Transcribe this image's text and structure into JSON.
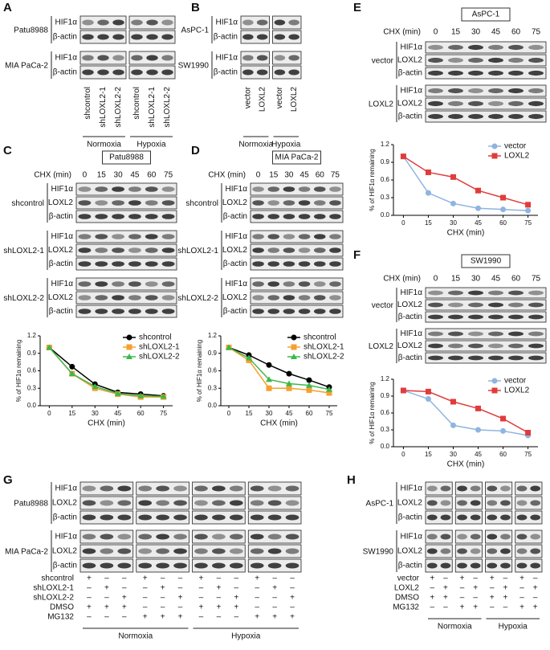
{
  "panels": [
    {
      "label": "A",
      "groups": [
        {
          "name": "Patu8988",
          "rows": [
            "HIF1α",
            "β-actin"
          ]
        },
        {
          "name": "MIA PaCa-2",
          "rows": [
            "HIF1α",
            "β-actin"
          ]
        }
      ],
      "lanes": [
        "shcontrol",
        "shLOXL2-1",
        "shLOXL2-2",
        "shcontrol",
        "shLOXL2-1",
        "shLOXL2-2"
      ],
      "conditions": [
        "Normoxia",
        "Hypoxia"
      ]
    },
    {
      "label": "B",
      "groups": [
        {
          "name": "AsPC-1",
          "rows": [
            "HIF1α",
            "β-actin"
          ]
        },
        {
          "name": "SW1990",
          "rows": [
            "HIF1α",
            "β-actin"
          ]
        }
      ],
      "lanes": [
        "vector",
        "LOXL2",
        "vector",
        "LOXL2"
      ],
      "conditions": [
        "Normoxia",
        "Hypoxia"
      ]
    },
    {
      "label": "C",
      "title": "Patu8988",
      "time_label": "CHX (min)",
      "times": [
        0,
        15,
        30,
        45,
        60,
        75
      ],
      "groups": [
        {
          "name": "shcontrol",
          "rows": [
            "HIF1α",
            "LOXL2",
            "β-actin"
          ]
        },
        {
          "name": "shLOXL2-1",
          "rows": [
            "HIF1α",
            "LOXL2",
            "β-actin"
          ]
        },
        {
          "name": "shLOXL2-2",
          "rows": [
            "HIF1α",
            "LOXL2",
            "β-actin"
          ]
        }
      ]
    },
    {
      "label": "D",
      "title": "MIA PaCa-2",
      "time_label": "CHX (min)",
      "times": [
        0,
        15,
        30,
        45,
        60,
        75
      ],
      "groups": [
        {
          "name": "shcontrol",
          "rows": [
            "HIF1α",
            "LOXL2",
            "β-actin"
          ]
        },
        {
          "name": "shLOXL2-1",
          "rows": [
            "HIF1α",
            "LOXL2",
            "β-actin"
          ]
        },
        {
          "name": "shLOXL2-2",
          "rows": [
            "HIF1α",
            "LOXL2",
            "β-actin"
          ]
        }
      ]
    },
    {
      "label": "E",
      "title": "AsPC-1",
      "time_label": "CHX (min)",
      "times": [
        0,
        15,
        30,
        45,
        60,
        75
      ],
      "groups": [
        {
          "name": "vector",
          "rows": [
            "HIF1α",
            "LOXL2",
            "β-actin"
          ]
        },
        {
          "name": "LOXL2",
          "rows": [
            "HIF1α",
            "LOXL2",
            "β-actin"
          ]
        }
      ]
    },
    {
      "label": "F",
      "title": "SW1990",
      "time_label": "CHX (min)",
      "times": [
        0,
        15,
        30,
        45,
        60,
        75
      ],
      "groups": [
        {
          "name": "vector",
          "rows": [
            "HIF1α",
            "LOXL2",
            "β-actin"
          ]
        },
        {
          "name": "LOXL2",
          "rows": [
            "HIF1α",
            "LOXL2",
            "β-actin"
          ]
        }
      ]
    },
    {
      "label": "G",
      "groups": [
        {
          "name": "Patu8988",
          "rows": [
            "HIF1α",
            "LOXL2",
            "β-actin"
          ]
        },
        {
          "name": "MIA PaCa-2",
          "rows": [
            "HIF1α",
            "LOXL2",
            "β-actin"
          ]
        }
      ],
      "treatments": [
        {
          "name": "shcontrol",
          "signs": [
            "+",
            "–",
            "–",
            "+",
            "–",
            "–",
            "+",
            "–",
            "–",
            "+",
            "–",
            "–"
          ]
        },
        {
          "name": "shLOXL2-1",
          "signs": [
            "–",
            "+",
            "–",
            "–",
            "+",
            "–",
            "–",
            "+",
            "–",
            "–",
            "+",
            "–"
          ]
        },
        {
          "name": "shLOXL2-2",
          "signs": [
            "–",
            "–",
            "+",
            "–",
            "–",
            "+",
            "–",
            "–",
            "+",
            "–",
            "–",
            "+"
          ]
        },
        {
          "name": "DMSO",
          "signs": [
            "+",
            "+",
            "+",
            "–",
            "–",
            "–",
            "+",
            "+",
            "+",
            "–",
            "–",
            "–"
          ]
        },
        {
          "name": "MG132",
          "signs": [
            "–",
            "–",
            "–",
            "+",
            "+",
            "+",
            "–",
            "–",
            "–",
            "+",
            "+",
            "+"
          ]
        }
      ],
      "conditions": [
        "Normoxia",
        "Hypoxia"
      ]
    },
    {
      "label": "H",
      "groups": [
        {
          "name": "AsPC-1",
          "rows": [
            "HIF1α",
            "LOXL2",
            "β-actin"
          ]
        },
        {
          "name": "SW1990",
          "rows": [
            "HIF1α",
            "LOXL2",
            "β-actin"
          ]
        }
      ],
      "treatments": [
        {
          "name": "vector",
          "signs": [
            "+",
            "–",
            "+",
            "–",
            "+",
            "–",
            "+",
            "–"
          ]
        },
        {
          "name": "LOXL2",
          "signs": [
            "–",
            "+",
            "–",
            "+",
            "–",
            "+",
            "–",
            "+"
          ]
        },
        {
          "name": "DMSO",
          "signs": [
            "+",
            "+",
            "–",
            "–",
            "+",
            "+",
            "–",
            "–"
          ]
        },
        {
          "name": "MG132",
          "signs": [
            "–",
            "–",
            "+",
            "+",
            "–",
            "–",
            "+",
            "+"
          ]
        }
      ],
      "conditions": [
        "Normoxia",
        "Hypoxia"
      ]
    }
  ],
  "chart_data": [
    {
      "type": "line",
      "xlabel": "CHX (min)",
      "ylabel": "% of HIF1α remaining",
      "x": [
        0,
        15,
        30,
        45,
        60,
        75
      ],
      "xlim": [
        -6,
        81
      ],
      "xticks": [
        0,
        15,
        30,
        45,
        60,
        75
      ],
      "ylim": [
        0,
        1.2
      ],
      "yticks": [
        {
          "value": 0,
          "label": "0.0"
        },
        0.3,
        0.6,
        0.9,
        1.2
      ],
      "legend": "upper right",
      "series": [
        {
          "name": "shcontrol",
          "color": "#000000",
          "marker": "circle",
          "values": [
            1,
            0.67,
            0.37,
            0.23,
            0.2,
            0.17
          ]
        },
        {
          "name": "shLOXL2-1",
          "color": "#f5a030",
          "marker": "square",
          "values": [
            1,
            0.55,
            0.3,
            0.2,
            0.15,
            0.15
          ]
        },
        {
          "name": "shLOXL2-2",
          "color": "#3cb84a",
          "marker": "triangle",
          "values": [
            1,
            0.55,
            0.33,
            0.21,
            0.17,
            0.16
          ]
        }
      ]
    },
    {
      "type": "line",
      "xlabel": "CHX (min)",
      "ylabel": "% of HIF1α remaining",
      "x": [
        0,
        15,
        30,
        45,
        60,
        75
      ],
      "xlim": [
        -6,
        81
      ],
      "xticks": [
        0,
        15,
        30,
        45,
        60,
        75
      ],
      "ylim": [
        0,
        1.2
      ],
      "yticks": [
        {
          "value": 0,
          "label": "0.0"
        },
        0.3,
        0.6,
        0.9,
        1.2
      ],
      "legend": "upper right",
      "series": [
        {
          "name": "shcontrol",
          "color": "#000000",
          "marker": "circle",
          "values": [
            1,
            0.87,
            0.7,
            0.55,
            0.44,
            0.32
          ]
        },
        {
          "name": "shLOXL2-1",
          "color": "#f5a030",
          "marker": "square",
          "values": [
            1,
            0.78,
            0.3,
            0.3,
            0.27,
            0.22
          ]
        },
        {
          "name": "shLOXL2-2",
          "color": "#3cb84a",
          "marker": "triangle",
          "values": [
            1,
            0.82,
            0.45,
            0.38,
            0.35,
            0.28
          ]
        }
      ]
    },
    {
      "type": "line",
      "xlabel": "CHX (min)",
      "ylabel": "% of HIF1α remaining",
      "x": [
        0,
        15,
        30,
        45,
        60,
        75
      ],
      "xlim": [
        -6,
        81
      ],
      "xticks": [
        0,
        15,
        30,
        45,
        60,
        75
      ],
      "ylim": [
        0,
        1.2
      ],
      "yticks": [
        {
          "value": 0,
          "label": "0.0"
        },
        0.3,
        0.6,
        0.9,
        1.2
      ],
      "legend": "upper right",
      "series": [
        {
          "name": "vector",
          "color": "#8fb4e0",
          "marker": "circle",
          "values": [
            1,
            0.38,
            0.2,
            0.12,
            0.1,
            0.08
          ]
        },
        {
          "name": "LOXL2",
          "color": "#e03c3c",
          "marker": "square",
          "values": [
            1,
            0.73,
            0.65,
            0.42,
            0.3,
            0.18
          ]
        }
      ]
    },
    {
      "type": "line",
      "xlabel": "CHX (min)",
      "ylabel": "% of HIF1α remaining",
      "x": [
        0,
        15,
        30,
        45,
        60,
        75
      ],
      "xlim": [
        -6,
        81
      ],
      "xticks": [
        0,
        15,
        30,
        45,
        60,
        75
      ],
      "ylim": [
        0,
        1.2
      ],
      "yticks": [
        {
          "value": 0,
          "label": "0.0"
        },
        0.3,
        0.6,
        0.9,
        1.2
      ],
      "legend": "upper right",
      "series": [
        {
          "name": "vector",
          "color": "#8fb4e0",
          "marker": "circle",
          "values": [
            1,
            0.85,
            0.38,
            0.3,
            0.28,
            0.2
          ]
        },
        {
          "name": "LOXL2",
          "color": "#e03c3c",
          "marker": "square",
          "values": [
            1,
            0.98,
            0.8,
            0.68,
            0.5,
            0.25
          ]
        }
      ]
    }
  ]
}
